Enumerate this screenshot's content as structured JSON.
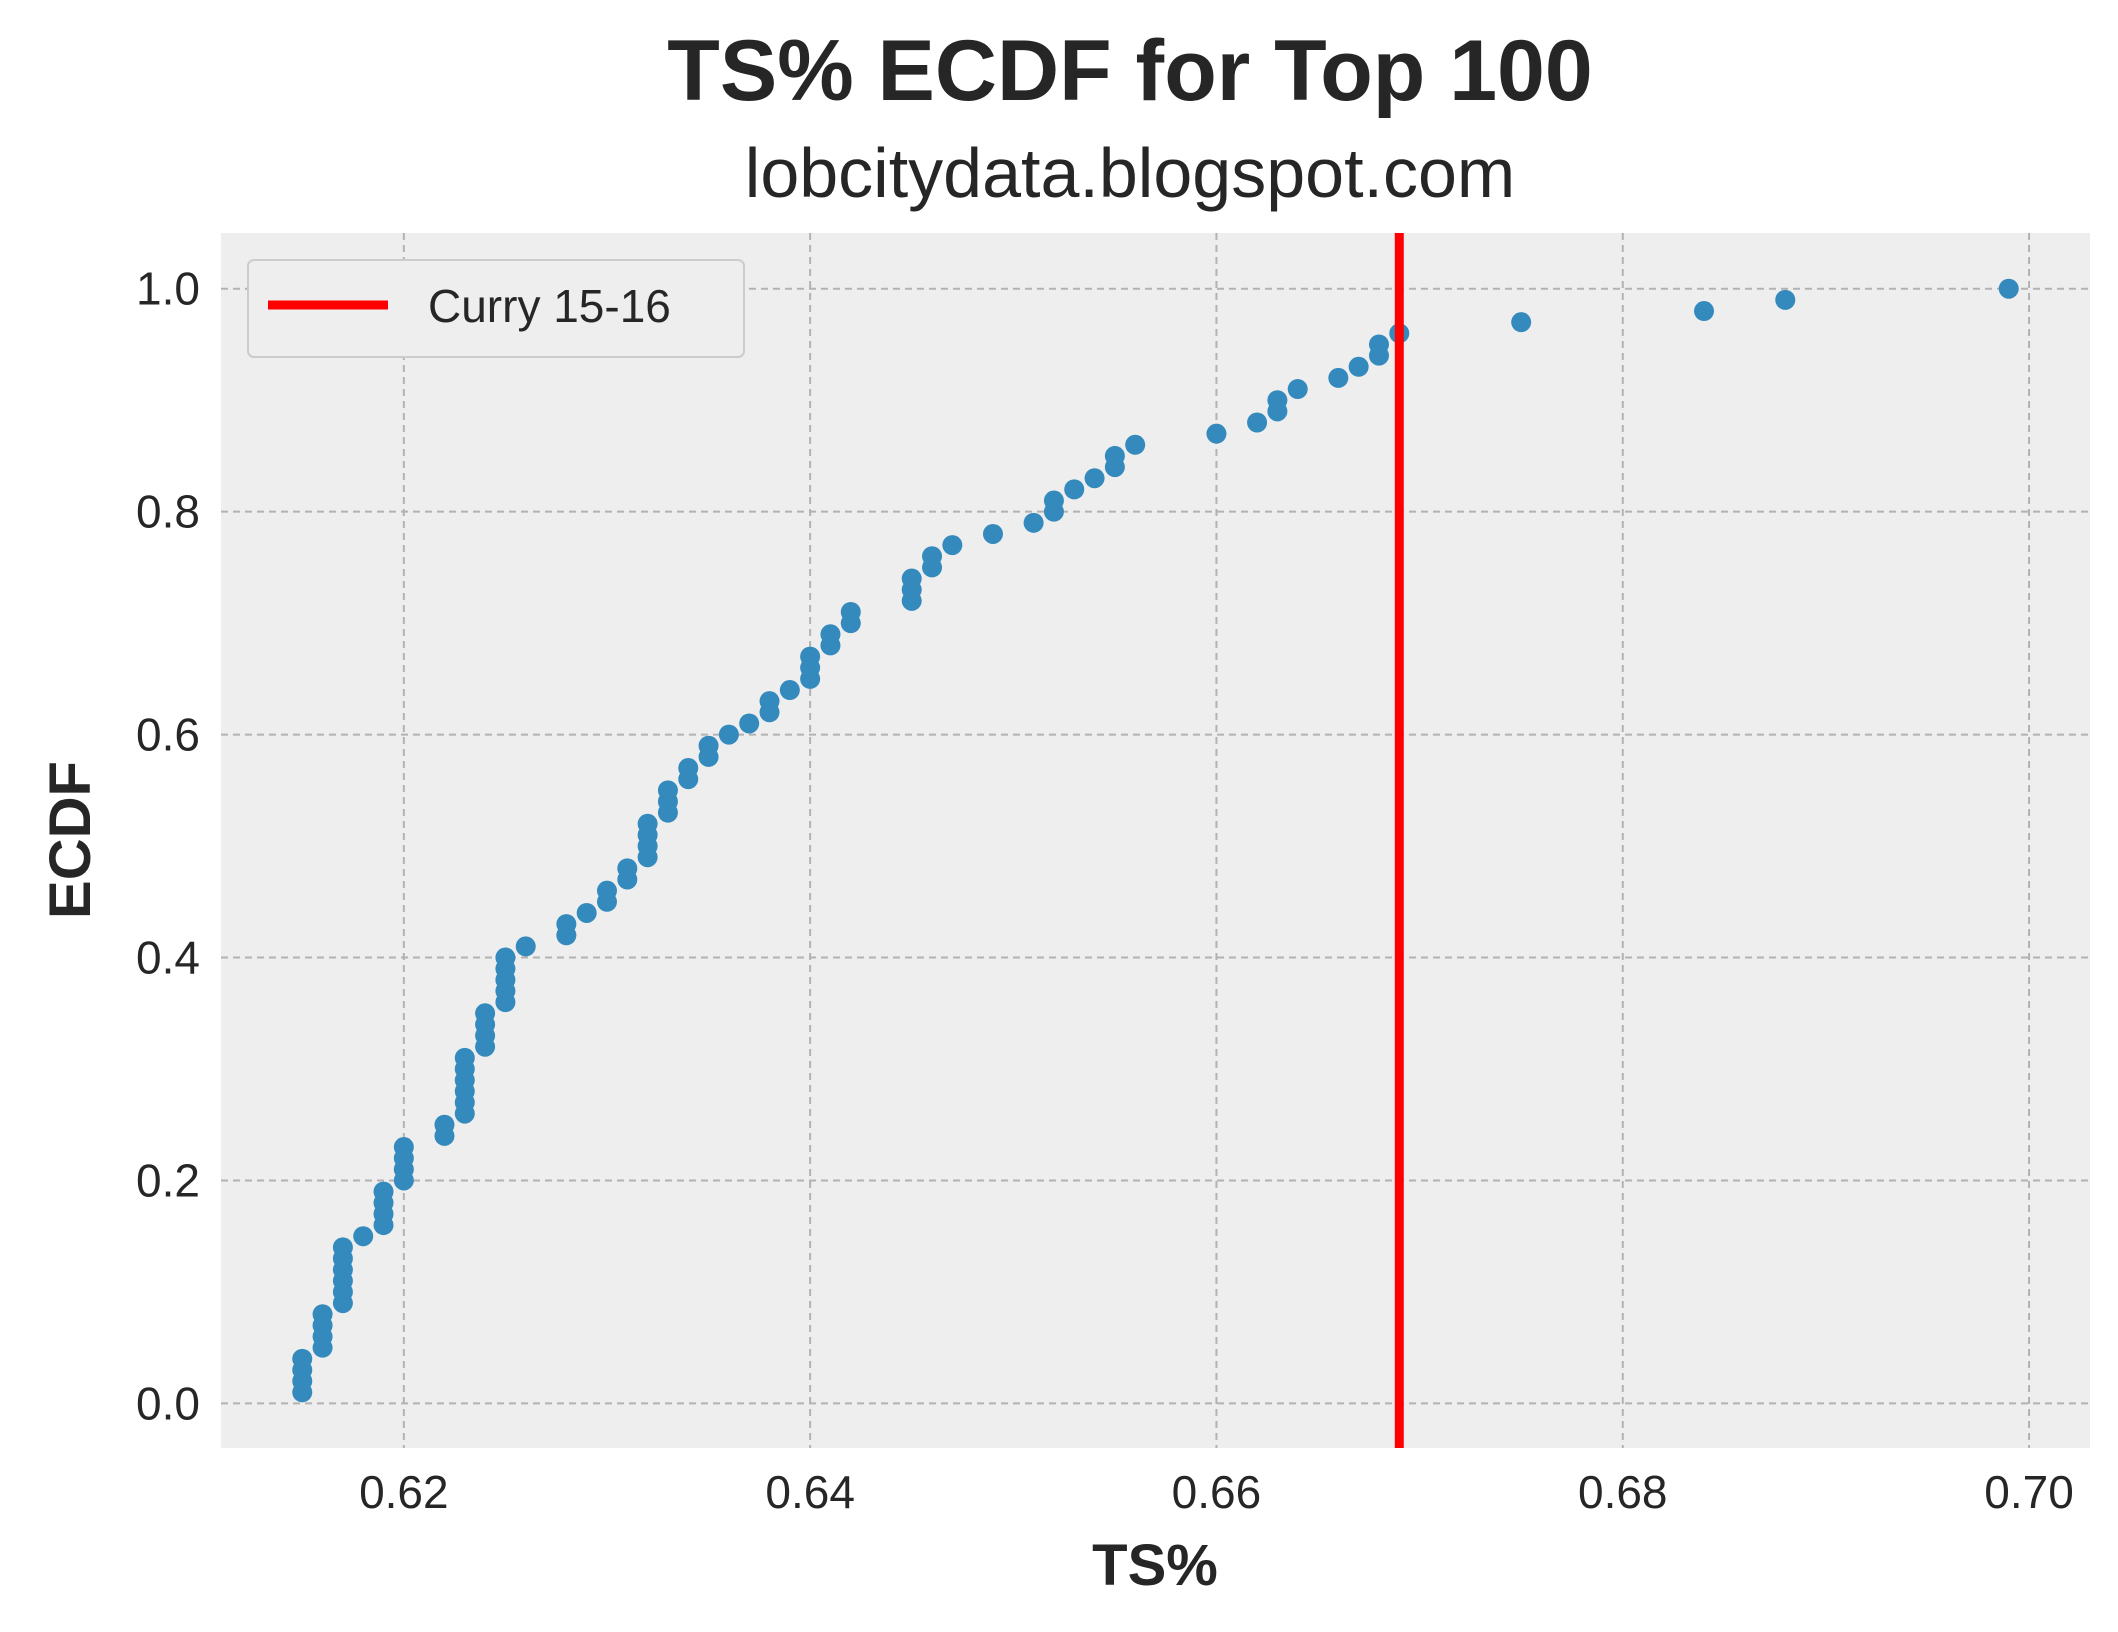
{
  "chart_data": {
    "type": "scatter",
    "title": "TS% ECDF for Top 100",
    "subtitle": "lobcitydata.blogspot.com",
    "xlabel": "TS%",
    "ylabel": "ECDF",
    "xlim": [
      0.611,
      0.703
    ],
    "ylim": [
      -0.04,
      1.05
    ],
    "xticks": [
      0.62,
      0.64,
      0.66,
      0.68,
      0.7
    ],
    "xtick_labels": [
      "0.62",
      "0.64",
      "0.66",
      "0.68",
      "0.70"
    ],
    "yticks": [
      0.0,
      0.2,
      0.4,
      0.6,
      0.8,
      1.0
    ],
    "ytick_labels": [
      "0.0",
      "0.2",
      "0.4",
      "0.6",
      "0.8",
      "1.0"
    ],
    "grid": true,
    "legend_position": "top-left",
    "series": [
      {
        "type": "scatter",
        "color": "#348abd",
        "x": [
          0.615,
          0.615,
          0.615,
          0.615,
          0.616,
          0.616,
          0.616,
          0.616,
          0.617,
          0.617,
          0.617,
          0.617,
          0.617,
          0.617,
          0.618,
          0.619,
          0.619,
          0.619,
          0.619,
          0.62,
          0.62,
          0.62,
          0.62,
          0.622,
          0.622,
          0.623,
          0.623,
          0.623,
          0.623,
          0.623,
          0.623,
          0.624,
          0.624,
          0.624,
          0.624,
          0.625,
          0.625,
          0.625,
          0.625,
          0.625,
          0.626,
          0.628,
          0.628,
          0.629,
          0.63,
          0.63,
          0.631,
          0.631,
          0.632,
          0.632,
          0.632,
          0.632,
          0.633,
          0.633,
          0.633,
          0.634,
          0.634,
          0.635,
          0.635,
          0.636,
          0.637,
          0.638,
          0.638,
          0.639,
          0.64,
          0.64,
          0.64,
          0.641,
          0.641,
          0.642,
          0.642,
          0.645,
          0.645,
          0.645,
          0.646,
          0.646,
          0.647,
          0.649,
          0.651,
          0.652,
          0.652,
          0.653,
          0.654,
          0.655,
          0.655,
          0.656,
          0.66,
          0.662,
          0.663,
          0.663,
          0.664,
          0.666,
          0.667,
          0.668,
          0.668,
          0.669,
          0.675,
          0.684,
          0.688,
          0.699
        ],
        "y": [
          0.01,
          0.02,
          0.03,
          0.04,
          0.05,
          0.06,
          0.07,
          0.08,
          0.09,
          0.1,
          0.11,
          0.12,
          0.13,
          0.14,
          0.15,
          0.16,
          0.17,
          0.18,
          0.19,
          0.2,
          0.21,
          0.22,
          0.23,
          0.24,
          0.25,
          0.26,
          0.27,
          0.28,
          0.29,
          0.3,
          0.31,
          0.32,
          0.33,
          0.34,
          0.35,
          0.36,
          0.37,
          0.38,
          0.39,
          0.4,
          0.41,
          0.42,
          0.43,
          0.44,
          0.45,
          0.46,
          0.47,
          0.48,
          0.49,
          0.5,
          0.51,
          0.52,
          0.53,
          0.54,
          0.55,
          0.56,
          0.57,
          0.58,
          0.59,
          0.6,
          0.61,
          0.62,
          0.63,
          0.64,
          0.65,
          0.66,
          0.67,
          0.68,
          0.69,
          0.7,
          0.71,
          0.72,
          0.73,
          0.74,
          0.75,
          0.76,
          0.77,
          0.78,
          0.79,
          0.8,
          0.81,
          0.82,
          0.83,
          0.84,
          0.85,
          0.86,
          0.87,
          0.88,
          0.89,
          0.9,
          0.91,
          0.92,
          0.93,
          0.94,
          0.95,
          0.96,
          0.97,
          0.98,
          0.99,
          1.0
        ]
      },
      {
        "type": "vline",
        "name": "Curry 15-16",
        "color": "#ff0000",
        "x": 0.669
      }
    ]
  }
}
